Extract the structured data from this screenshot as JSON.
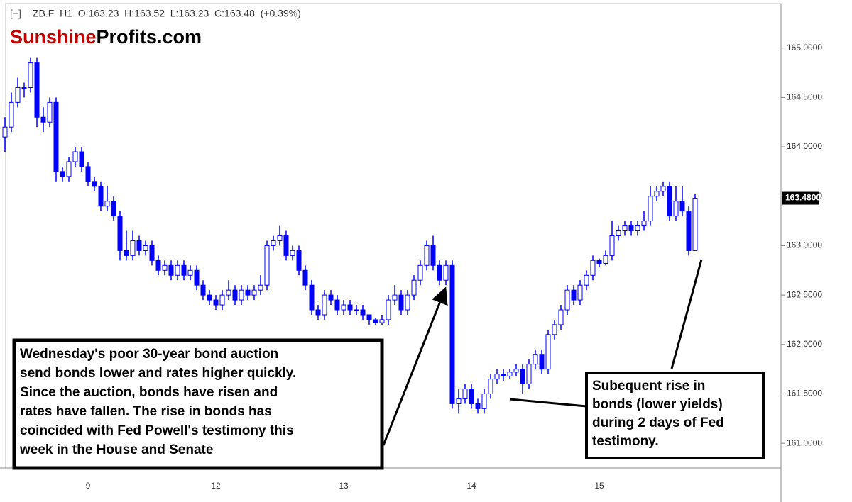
{
  "chart_data": {
    "type": "candlestick",
    "header": "ZB.F  H1  O:163.23  H:163.52  L:163.23  C:163.48  (+0.39%)",
    "logo_part1": "Sunshine",
    "logo_part2": "Profits.com",
    "color": "#0000ff",
    "ylim": [
      160.75,
      165.45
    ],
    "yticks": [
      {
        "value": 161.0,
        "label": "161.0000"
      },
      {
        "value": 161.5,
        "label": "161.5000"
      },
      {
        "value": 162.0,
        "label": "162.0000"
      },
      {
        "value": 162.5,
        "label": "162.5000"
      },
      {
        "value": 163.0,
        "label": "163.0000"
      },
      {
        "value": 163.5,
        "label": "163.5000"
      },
      {
        "value": 164.0,
        "label": "164.0000"
      },
      {
        "value": 164.5,
        "label": "164.5000"
      },
      {
        "value": 165.0,
        "label": "165.0000"
      }
    ],
    "grid": false,
    "last_value": 163.48,
    "last_value_label": "163.4800",
    "categories": [
      null,
      null,
      null,
      null,
      null,
      null,
      null,
      null,
      null,
      null,
      null,
      null,
      null,
      "9",
      null,
      null,
      null,
      null,
      null,
      null,
      null,
      null,
      null,
      null,
      null,
      null,
      null,
      null,
      null,
      null,
      null,
      null,
      null,
      "12",
      null,
      null,
      null,
      null,
      null,
      null,
      null,
      null,
      null,
      null,
      null,
      null,
      null,
      null,
      null,
      null,
      null,
      null,
      null,
      "13",
      null,
      null,
      null,
      null,
      null,
      null,
      null,
      null,
      null,
      null,
      null,
      null,
      null,
      null,
      null,
      null,
      null,
      null,
      null,
      "14",
      null,
      null,
      null,
      null,
      null,
      null,
      null,
      null,
      null,
      null,
      null,
      null,
      null,
      null,
      null,
      null,
      null,
      null,
      null,
      "15",
      null,
      null,
      null,
      null,
      null,
      null,
      null,
      null,
      null,
      null,
      null,
      null,
      null,
      null,
      null
    ],
    "open": [
      164.1,
      164.2,
      164.45,
      164.6,
      164.6,
      164.85,
      164.3,
      164.25,
      164.45,
      163.75,
      163.7,
      163.85,
      163.95,
      163.8,
      163.65,
      163.6,
      163.4,
      163.45,
      163.3,
      162.95,
      162.9,
      163.05,
      162.95,
      163.0,
      162.85,
      162.75,
      162.8,
      162.7,
      162.8,
      162.7,
      162.75,
      162.6,
      162.5,
      162.45,
      162.4,
      162.5,
      162.55,
      162.45,
      162.55,
      162.5,
      162.55,
      162.6,
      163.0,
      163.05,
      163.1,
      162.9,
      162.95,
      162.75,
      162.6,
      162.35,
      162.3,
      162.5,
      162.45,
      162.35,
      162.4,
      162.35,
      162.35,
      162.3,
      162.25,
      162.22,
      162.25,
      162.45,
      162.5,
      162.35,
      162.5,
      162.65,
      162.8,
      163.0,
      162.8,
      162.65,
      162.8,
      161.4,
      161.45,
      161.55,
      161.4,
      161.35,
      161.5,
      161.65,
      161.7,
      161.68,
      161.72,
      161.75,
      161.6,
      161.8,
      161.9,
      161.75,
      162.1,
      162.2,
      162.35,
      162.55,
      162.45,
      162.6,
      162.7,
      162.85,
      162.82,
      162.9,
      163.1,
      163.15,
      163.2,
      163.15,
      163.2,
      163.25,
      163.5,
      163.55,
      163.6,
      163.3,
      163.45,
      163.35,
      162.95
    ],
    "high": [
      164.3,
      164.55,
      164.7,
      164.65,
      164.9,
      164.9,
      164.4,
      164.5,
      164.5,
      163.8,
      163.9,
      164.0,
      164.0,
      163.85,
      163.7,
      163.65,
      163.6,
      163.5,
      163.35,
      163.15,
      163.15,
      163.1,
      163.05,
      163.05,
      162.9,
      162.85,
      162.85,
      162.85,
      162.85,
      162.8,
      162.8,
      162.65,
      162.55,
      162.5,
      162.55,
      162.65,
      162.6,
      162.6,
      162.6,
      162.6,
      162.7,
      163.05,
      163.1,
      163.2,
      163.15,
      163.0,
      163.0,
      162.8,
      162.65,
      162.4,
      162.55,
      162.55,
      162.5,
      162.45,
      162.45,
      162.4,
      162.4,
      162.3,
      162.27,
      162.3,
      162.5,
      162.6,
      162.55,
      162.55,
      162.7,
      162.85,
      163.05,
      163.1,
      162.85,
      162.85,
      162.85,
      161.55,
      161.6,
      161.6,
      161.45,
      161.55,
      161.7,
      161.75,
      161.75,
      161.75,
      161.8,
      161.8,
      161.85,
      161.95,
      161.95,
      162.15,
      162.25,
      162.4,
      162.6,
      162.6,
      162.65,
      162.75,
      162.9,
      162.87,
      162.95,
      163.25,
      163.2,
      163.25,
      163.25,
      163.25,
      163.35,
      163.6,
      163.6,
      163.65,
      163.65,
      163.6,
      163.6,
      163.4,
      163.52
    ],
    "low": [
      163.95,
      164.15,
      164.4,
      164.5,
      164.55,
      164.2,
      164.15,
      164.2,
      163.65,
      163.65,
      163.65,
      163.8,
      163.75,
      163.6,
      163.55,
      163.35,
      163.35,
      163.25,
      162.85,
      162.85,
      162.85,
      162.9,
      162.9,
      162.8,
      162.7,
      162.7,
      162.65,
      162.65,
      162.65,
      162.65,
      162.55,
      162.45,
      162.4,
      162.35,
      162.35,
      162.45,
      162.4,
      162.4,
      162.45,
      162.45,
      162.5,
      162.55,
      162.95,
      163.0,
      162.85,
      162.85,
      162.7,
      162.55,
      162.3,
      162.25,
      162.25,
      162.4,
      162.3,
      162.3,
      162.3,
      162.3,
      162.25,
      162.2,
      162.2,
      162.2,
      162.2,
      162.4,
      162.3,
      162.3,
      162.45,
      162.6,
      162.75,
      162.75,
      162.6,
      162.6,
      161.35,
      161.3,
      161.4,
      161.35,
      161.3,
      161.3,
      161.45,
      161.6,
      161.63,
      161.65,
      161.68,
      161.5,
      161.55,
      161.75,
      161.7,
      161.7,
      162.05,
      162.15,
      162.3,
      162.4,
      162.4,
      162.55,
      162.65,
      162.78,
      162.8,
      162.85,
      163.05,
      163.1,
      163.1,
      163.1,
      163.15,
      163.2,
      163.45,
      163.5,
      163.25,
      163.25,
      163.3,
      162.9,
      162.95
    ],
    "close": [
      164.2,
      164.45,
      164.6,
      164.6,
      164.85,
      164.3,
      164.25,
      164.45,
      163.75,
      163.7,
      163.85,
      163.95,
      163.8,
      163.65,
      163.6,
      163.4,
      163.45,
      163.3,
      162.95,
      162.9,
      163.05,
      162.95,
      163.0,
      162.85,
      162.75,
      162.8,
      162.7,
      162.8,
      162.7,
      162.75,
      162.6,
      162.5,
      162.45,
      162.4,
      162.5,
      162.55,
      162.45,
      162.55,
      162.5,
      162.55,
      162.6,
      163.0,
      163.05,
      163.1,
      162.9,
      162.95,
      162.75,
      162.6,
      162.35,
      162.3,
      162.5,
      162.45,
      162.35,
      162.4,
      162.35,
      162.35,
      162.3,
      162.25,
      162.22,
      162.25,
      162.45,
      162.5,
      162.35,
      162.5,
      162.65,
      162.8,
      163.0,
      162.8,
      162.65,
      162.8,
      161.4,
      161.45,
      161.55,
      161.4,
      161.35,
      161.5,
      161.65,
      161.7,
      161.68,
      161.72,
      161.75,
      161.6,
      161.8,
      161.9,
      161.75,
      162.1,
      162.2,
      162.35,
      162.55,
      162.45,
      162.6,
      162.7,
      162.85,
      162.82,
      162.9,
      163.1,
      163.15,
      163.2,
      163.15,
      163.2,
      163.25,
      163.5,
      163.55,
      163.6,
      163.3,
      163.45,
      163.35,
      162.95,
      163.48
    ],
    "annotations": [
      {
        "lines": [
          "Wednesday's poor 30-year bond auction",
          "send bonds lower and rates higher quickly.",
          "Since the auction, bonds have risen and",
          "rates have fallen. The rise in bonds has",
          "coincided with Fed Powell's testimony this",
          "week in the House and Senate"
        ]
      },
      {
        "lines": [
          "Subequent rise in",
          "bonds (lower yields)",
          "during 2 days of Fed",
          "testimony."
        ]
      }
    ]
  }
}
